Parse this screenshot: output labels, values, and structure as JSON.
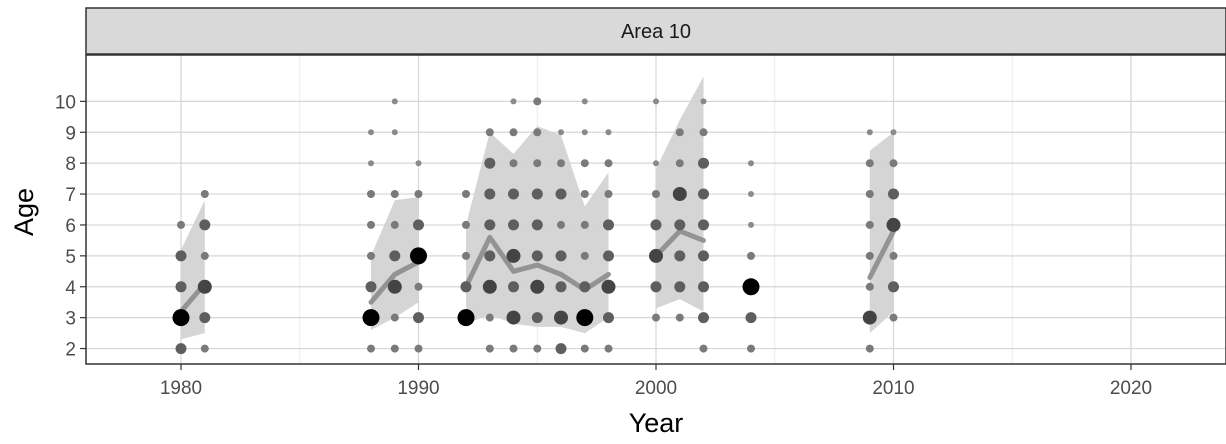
{
  "chart_data": {
    "type": "scatter",
    "panel_title": "Area 10",
    "xlabel": "Year",
    "ylabel": "Age",
    "xlim": [
      1976,
      2024
    ],
    "ylim": [
      1.5,
      11.5
    ],
    "x_ticks": [
      1980,
      1990,
      2000,
      2010,
      2020
    ],
    "y_ticks": [
      2,
      3,
      4,
      5,
      6,
      7,
      8,
      9,
      10
    ],
    "grid": true,
    "legend": "none",
    "colors": {
      "point": "#000000",
      "line": "#8c8c8c",
      "band": "#d3d3d3",
      "strip": "#d9d9d9"
    },
    "points": [
      {
        "x": 1980,
        "y": 2,
        "size": 2
      },
      {
        "x": 1980,
        "y": 3,
        "size": 4
      },
      {
        "x": 1980,
        "y": 4,
        "size": 2
      },
      {
        "x": 1980,
        "y": 5,
        "size": 2
      },
      {
        "x": 1980,
        "y": 6,
        "size": 1
      },
      {
        "x": 1981,
        "y": 2,
        "size": 1
      },
      {
        "x": 1981,
        "y": 3,
        "size": 2
      },
      {
        "x": 1981,
        "y": 4,
        "size": 3
      },
      {
        "x": 1981,
        "y": 5,
        "size": 1
      },
      {
        "x": 1981,
        "y": 6,
        "size": 2
      },
      {
        "x": 1981,
        "y": 7,
        "size": 1
      },
      {
        "x": 1988,
        "y": 2,
        "size": 1
      },
      {
        "x": 1988,
        "y": 3,
        "size": 4
      },
      {
        "x": 1988,
        "y": 4,
        "size": 2
      },
      {
        "x": 1988,
        "y": 5,
        "size": 1
      },
      {
        "x": 1988,
        "y": 6,
        "size": 1
      },
      {
        "x": 1988,
        "y": 7,
        "size": 1
      },
      {
        "x": 1988,
        "y": 8,
        "size": 0
      },
      {
        "x": 1988,
        "y": 9,
        "size": 0
      },
      {
        "x": 1989,
        "y": 2,
        "size": 1
      },
      {
        "x": 1989,
        "y": 3,
        "size": 1
      },
      {
        "x": 1989,
        "y": 4,
        "size": 3
      },
      {
        "x": 1989,
        "y": 5,
        "size": 2
      },
      {
        "x": 1989,
        "y": 6,
        "size": 1
      },
      {
        "x": 1989,
        "y": 7,
        "size": 1
      },
      {
        "x": 1989,
        "y": 9,
        "size": 0
      },
      {
        "x": 1989,
        "y": 10,
        "size": 0
      },
      {
        "x": 1990,
        "y": 2,
        "size": 1
      },
      {
        "x": 1990,
        "y": 3,
        "size": 2
      },
      {
        "x": 1990,
        "y": 4,
        "size": 1
      },
      {
        "x": 1990,
        "y": 5,
        "size": 4
      },
      {
        "x": 1990,
        "y": 6,
        "size": 2
      },
      {
        "x": 1990,
        "y": 7,
        "size": 1
      },
      {
        "x": 1990,
        "y": 8,
        "size": 0
      },
      {
        "x": 1992,
        "y": 3,
        "size": 4
      },
      {
        "x": 1992,
        "y": 4,
        "size": 2
      },
      {
        "x": 1992,
        "y": 5,
        "size": 1
      },
      {
        "x": 1992,
        "y": 6,
        "size": 1
      },
      {
        "x": 1992,
        "y": 7,
        "size": 1
      },
      {
        "x": 1993,
        "y": 2,
        "size": 1
      },
      {
        "x": 1993,
        "y": 3,
        "size": 1
      },
      {
        "x": 1993,
        "y": 4,
        "size": 3
      },
      {
        "x": 1993,
        "y": 5,
        "size": 2
      },
      {
        "x": 1993,
        "y": 6,
        "size": 2
      },
      {
        "x": 1993,
        "y": 7,
        "size": 2
      },
      {
        "x": 1993,
        "y": 8,
        "size": 2
      },
      {
        "x": 1993,
        "y": 9,
        "size": 1
      },
      {
        "x": 1994,
        "y": 2,
        "size": 1
      },
      {
        "x": 1994,
        "y": 3,
        "size": 3
      },
      {
        "x": 1994,
        "y": 4,
        "size": 2
      },
      {
        "x": 1994,
        "y": 5,
        "size": 3
      },
      {
        "x": 1994,
        "y": 6,
        "size": 2
      },
      {
        "x": 1994,
        "y": 7,
        "size": 2
      },
      {
        "x": 1994,
        "y": 8,
        "size": 1
      },
      {
        "x": 1994,
        "y": 9,
        "size": 1
      },
      {
        "x": 1994,
        "y": 10,
        "size": 0
      },
      {
        "x": 1995,
        "y": 2,
        "size": 1
      },
      {
        "x": 1995,
        "y": 3,
        "size": 2
      },
      {
        "x": 1995,
        "y": 4,
        "size": 3
      },
      {
        "x": 1995,
        "y": 5,
        "size": 2
      },
      {
        "x": 1995,
        "y": 6,
        "size": 2
      },
      {
        "x": 1995,
        "y": 7,
        "size": 2
      },
      {
        "x": 1995,
        "y": 8,
        "size": 1
      },
      {
        "x": 1995,
        "y": 9,
        "size": 1
      },
      {
        "x": 1995,
        "y": 10,
        "size": 1
      },
      {
        "x": 1996,
        "y": 2,
        "size": 2
      },
      {
        "x": 1996,
        "y": 3,
        "size": 3
      },
      {
        "x": 1996,
        "y": 4,
        "size": 2
      },
      {
        "x": 1996,
        "y": 5,
        "size": 2
      },
      {
        "x": 1996,
        "y": 6,
        "size": 1
      },
      {
        "x": 1996,
        "y": 7,
        "size": 2
      },
      {
        "x": 1996,
        "y": 8,
        "size": 1
      },
      {
        "x": 1996,
        "y": 9,
        "size": 0
      },
      {
        "x": 1997,
        "y": 2,
        "size": 1
      },
      {
        "x": 1997,
        "y": 3,
        "size": 4
      },
      {
        "x": 1997,
        "y": 4,
        "size": 2
      },
      {
        "x": 1997,
        "y": 5,
        "size": 1
      },
      {
        "x": 1997,
        "y": 6,
        "size": 1
      },
      {
        "x": 1997,
        "y": 7,
        "size": 1
      },
      {
        "x": 1997,
        "y": 8,
        "size": 1
      },
      {
        "x": 1997,
        "y": 9,
        "size": 0
      },
      {
        "x": 1997,
        "y": 10,
        "size": 0
      },
      {
        "x": 1998,
        "y": 2,
        "size": 1
      },
      {
        "x": 1998,
        "y": 3,
        "size": 2
      },
      {
        "x": 1998,
        "y": 4,
        "size": 3
      },
      {
        "x": 1998,
        "y": 5,
        "size": 2
      },
      {
        "x": 1998,
        "y": 6,
        "size": 2
      },
      {
        "x": 1998,
        "y": 7,
        "size": 1
      },
      {
        "x": 1998,
        "y": 8,
        "size": 1
      },
      {
        "x": 1998,
        "y": 9,
        "size": 0
      },
      {
        "x": 2000,
        "y": 3,
        "size": 1
      },
      {
        "x": 2000,
        "y": 4,
        "size": 2
      },
      {
        "x": 2000,
        "y": 5,
        "size": 3
      },
      {
        "x": 2000,
        "y": 6,
        "size": 2
      },
      {
        "x": 2000,
        "y": 7,
        "size": 1
      },
      {
        "x": 2000,
        "y": 8,
        "size": 0
      },
      {
        "x": 2000,
        "y": 10,
        "size": 0
      },
      {
        "x": 2001,
        "y": 3,
        "size": 1
      },
      {
        "x": 2001,
        "y": 4,
        "size": 2
      },
      {
        "x": 2001,
        "y": 5,
        "size": 2
      },
      {
        "x": 2001,
        "y": 6,
        "size": 2
      },
      {
        "x": 2001,
        "y": 7,
        "size": 3
      },
      {
        "x": 2001,
        "y": 8,
        "size": 1
      },
      {
        "x": 2001,
        "y": 9,
        "size": 1
      },
      {
        "x": 2002,
        "y": 2,
        "size": 1
      },
      {
        "x": 2002,
        "y": 3,
        "size": 2
      },
      {
        "x": 2002,
        "y": 4,
        "size": 2
      },
      {
        "x": 2002,
        "y": 5,
        "size": 2
      },
      {
        "x": 2002,
        "y": 6,
        "size": 2
      },
      {
        "x": 2002,
        "y": 7,
        "size": 2
      },
      {
        "x": 2002,
        "y": 8,
        "size": 2
      },
      {
        "x": 2002,
        "y": 9,
        "size": 1
      },
      {
        "x": 2002,
        "y": 10,
        "size": 0
      },
      {
        "x": 2004,
        "y": 2,
        "size": 1
      },
      {
        "x": 2004,
        "y": 3,
        "size": 2
      },
      {
        "x": 2004,
        "y": 4,
        "size": 4
      },
      {
        "x": 2004,
        "y": 5,
        "size": 1
      },
      {
        "x": 2004,
        "y": 6,
        "size": 0
      },
      {
        "x": 2004,
        "y": 7,
        "size": 0
      },
      {
        "x": 2004,
        "y": 8,
        "size": 0
      },
      {
        "x": 2009,
        "y": 2,
        "size": 1
      },
      {
        "x": 2009,
        "y": 3,
        "size": 3
      },
      {
        "x": 2009,
        "y": 4,
        "size": 1
      },
      {
        "x": 2009,
        "y": 5,
        "size": 1
      },
      {
        "x": 2009,
        "y": 6,
        "size": 1
      },
      {
        "x": 2009,
        "y": 7,
        "size": 1
      },
      {
        "x": 2009,
        "y": 8,
        "size": 1
      },
      {
        "x": 2009,
        "y": 9,
        "size": 0
      },
      {
        "x": 2010,
        "y": 3,
        "size": 1
      },
      {
        "x": 2010,
        "y": 4,
        "size": 2
      },
      {
        "x": 2010,
        "y": 5,
        "size": 1
      },
      {
        "x": 2010,
        "y": 6,
        "size": 3
      },
      {
        "x": 2010,
        "y": 7,
        "size": 2
      },
      {
        "x": 2010,
        "y": 8,
        "size": 1
      },
      {
        "x": 2010,
        "y": 9,
        "size": 0
      }
    ],
    "mean_lines": [
      {
        "x": [
          1980,
          1981
        ],
        "y": [
          3.2,
          4.1
        ]
      },
      {
        "x": [
          1988,
          1989,
          1990
        ],
        "y": [
          3.5,
          4.4,
          4.8
        ]
      },
      {
        "x": [
          1992,
          1993,
          1994,
          1995,
          1996,
          1997,
          1998
        ],
        "y": [
          4.0,
          5.6,
          4.5,
          4.7,
          4.4,
          3.9,
          4.4
        ]
      },
      {
        "x": [
          2000,
          2001,
          2002
        ],
        "y": [
          5.0,
          5.8,
          5.5
        ]
      },
      {
        "x": [
          2009,
          2010
        ],
        "y": [
          4.3,
          5.8
        ]
      }
    ],
    "bands": [
      {
        "x": [
          1980,
          1981
        ],
        "lower": [
          2.3,
          2.5
        ],
        "upper": [
          5.2,
          6.8
        ]
      },
      {
        "x": [
          1988,
          1989,
          1990
        ],
        "lower": [
          2.6,
          3.0,
          3.5
        ],
        "upper": [
          5.0,
          6.8,
          6.9
        ]
      },
      {
        "x": [
          1992,
          1993,
          1994,
          1995,
          1996,
          1997,
          1998
        ],
        "lower": [
          2.8,
          3.1,
          2.8,
          2.7,
          2.7,
          2.5,
          3.0
        ],
        "upper": [
          6.0,
          9.0,
          8.3,
          9.2,
          8.9,
          6.6,
          7.7
        ]
      },
      {
        "x": [
          2000,
          2001,
          2002
        ],
        "lower": [
          3.3,
          3.6,
          3.2
        ],
        "upper": [
          7.8,
          9.4,
          10.8
        ]
      },
      {
        "x": [
          2009,
          2010
        ],
        "lower": [
          2.5,
          3.2
        ],
        "upper": [
          8.4,
          9.0
        ]
      }
    ]
  }
}
